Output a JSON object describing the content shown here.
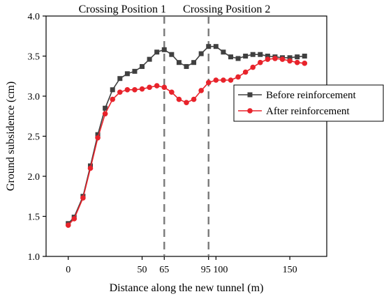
{
  "chart_data": {
    "type": "line",
    "xlabel": "Distance along the new tunnel (m)",
    "ylabel": "Ground subsidence (cm)",
    "xlim": [
      -15,
      175
    ],
    "ylim": [
      1.0,
      4.0
    ],
    "xticks": [
      0,
      50,
      65,
      95,
      100,
      150
    ],
    "xtick_labels": [
      "0",
      "50",
      "65",
      "95",
      "100",
      "150"
    ],
    "yticks": [
      1.0,
      1.5,
      2.0,
      2.5,
      3.0,
      3.5,
      4.0
    ],
    "ytick_labels": [
      "1.0",
      "1.5",
      "2.0",
      "2.5",
      "3.0",
      "3.5",
      "4.0"
    ],
    "grid": false,
    "legend_position": "right",
    "annotations": [
      {
        "text": "Crossing Position 1",
        "x": 65
      },
      {
        "text": "Crossing Position 2",
        "x": 95
      }
    ],
    "series": [
      {
        "name": "Before reinforcement",
        "color": "#404040",
        "marker": "square",
        "x": [
          0,
          4,
          10,
          15,
          20,
          25,
          30,
          35,
          40,
          45,
          50,
          55,
          60,
          65,
          70,
          75,
          80,
          85,
          90,
          95,
          100,
          105,
          110,
          115,
          120,
          125,
          130,
          135,
          140,
          145,
          150,
          155,
          160
        ],
        "values": [
          1.41,
          1.49,
          1.75,
          2.13,
          2.52,
          2.85,
          3.08,
          3.22,
          3.28,
          3.31,
          3.37,
          3.46,
          3.55,
          3.58,
          3.52,
          3.42,
          3.37,
          3.42,
          3.53,
          3.62,
          3.62,
          3.55,
          3.49,
          3.47,
          3.5,
          3.52,
          3.52,
          3.5,
          3.49,
          3.48,
          3.48,
          3.49,
          3.5
        ]
      },
      {
        "name": "After reinforcement",
        "color": "#e8232b",
        "marker": "circle",
        "x": [
          0,
          4,
          10,
          15,
          20,
          25,
          30,
          35,
          40,
          45,
          50,
          55,
          60,
          65,
          70,
          75,
          80,
          85,
          90,
          95,
          100,
          105,
          110,
          115,
          120,
          125,
          130,
          135,
          140,
          145,
          150,
          155,
          160
        ],
        "values": [
          1.39,
          1.47,
          1.73,
          2.1,
          2.48,
          2.78,
          2.96,
          3.05,
          3.08,
          3.08,
          3.09,
          3.11,
          3.13,
          3.11,
          3.05,
          2.96,
          2.92,
          2.96,
          3.07,
          3.17,
          3.2,
          3.2,
          3.2,
          3.24,
          3.3,
          3.36,
          3.42,
          3.46,
          3.47,
          3.46,
          3.44,
          3.42,
          3.41
        ]
      }
    ]
  }
}
